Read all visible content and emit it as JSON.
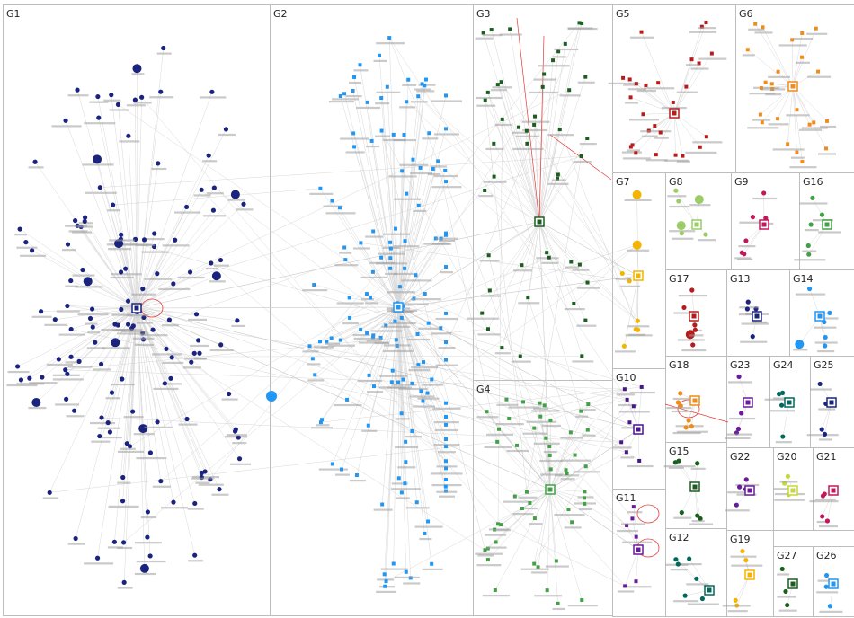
{
  "graph": {
    "groups": [
      {
        "id": "g1",
        "label": "G1",
        "color": "#1a237e",
        "hub_marker": "square-hub",
        "node_marker": "circle"
      },
      {
        "id": "g2",
        "label": "G2",
        "color": "#2196f3",
        "hub_marker": "square-hub",
        "node_marker": "square"
      },
      {
        "id": "g3",
        "label": "G3",
        "color": "#1b5e20",
        "hub_marker": "square-hub",
        "node_marker": "square"
      },
      {
        "id": "g4",
        "label": "G4",
        "color": "#43a047",
        "hub_marker": "square-hub",
        "node_marker": "square"
      },
      {
        "id": "g5",
        "label": "G5",
        "color": "#b71c1c",
        "hub_marker": "square-hub",
        "node_marker": "square"
      },
      {
        "id": "g6",
        "label": "G6",
        "color": "#ef8c1a",
        "hub_marker": "square-hub",
        "node_marker": "square"
      },
      {
        "id": "g7",
        "label": "G7",
        "color": "#f4b400",
        "hub_marker": "square-hub",
        "node_marker": "circle"
      },
      {
        "id": "g8",
        "label": "G8",
        "color": "#9ccc65",
        "hub_marker": "square-hub",
        "node_marker": "circle"
      },
      {
        "id": "g9",
        "label": "G9",
        "color": "#c2185b",
        "hub_marker": "square-hub",
        "node_marker": "circle"
      },
      {
        "id": "g10",
        "label": "G10",
        "color": "#4a148c",
        "hub_marker": "square-hub",
        "node_marker": "square"
      },
      {
        "id": "g11",
        "label": "G11",
        "color": "#6a1b9a",
        "hub_marker": "square-hub",
        "node_marker": "square"
      },
      {
        "id": "g12",
        "label": "G12",
        "color": "#00695c",
        "hub_marker": "square-hub",
        "node_marker": "circle"
      },
      {
        "id": "g13",
        "label": "G13",
        "color": "#1a237e",
        "hub_marker": "square-hub",
        "node_marker": "circle"
      },
      {
        "id": "g14",
        "label": "G14",
        "color": "#2196f3",
        "hub_marker": "square-hub",
        "node_marker": "circle"
      },
      {
        "id": "g15",
        "label": "G15",
        "color": "#1b5e20",
        "hub_marker": "square-hub",
        "node_marker": "circle"
      },
      {
        "id": "g16",
        "label": "G16",
        "color": "#43a047",
        "hub_marker": "square-hub",
        "node_marker": "circle"
      },
      {
        "id": "g17",
        "label": "G17",
        "color": "#b71c1c",
        "hub_marker": "square-hub",
        "node_marker": "circle"
      },
      {
        "id": "g18",
        "label": "G18",
        "color": "#ef8c1a",
        "hub_marker": "square-hub",
        "node_marker": "circle"
      },
      {
        "id": "g19",
        "label": "G19",
        "color": "#f4b400",
        "hub_marker": "square-hub",
        "node_marker": "circle"
      },
      {
        "id": "g20",
        "label": "G20",
        "color": "#c6d93a",
        "hub_marker": "square-hub",
        "node_marker": "circle"
      },
      {
        "id": "g21",
        "label": "G21",
        "color": "#c2185b",
        "hub_marker": "square-hub",
        "node_marker": "circle"
      },
      {
        "id": "g22",
        "label": "G22",
        "color": "#6a1b9a",
        "hub_marker": "square-hub",
        "node_marker": "circle"
      },
      {
        "id": "g23",
        "label": "G23",
        "color": "#6a1b9a",
        "hub_marker": "square-hub",
        "node_marker": "circle"
      },
      {
        "id": "g24",
        "label": "G24",
        "color": "#00695c",
        "hub_marker": "square-hub",
        "node_marker": "circle"
      },
      {
        "id": "g25",
        "label": "G25",
        "color": "#1a237e",
        "hub_marker": "square-hub",
        "node_marker": "circle"
      },
      {
        "id": "g26",
        "label": "G26",
        "color": "#2196f3",
        "hub_marker": "square-hub",
        "node_marker": "circle"
      },
      {
        "id": "g27",
        "label": "G27",
        "color": "#1b5e20",
        "hub_marker": "square-hub",
        "node_marker": "circle"
      }
    ],
    "cross_edge_color": "#c8c8c8",
    "self_loop_color": "#e53935",
    "label_shadow_color": "#9e9e9e"
  }
}
